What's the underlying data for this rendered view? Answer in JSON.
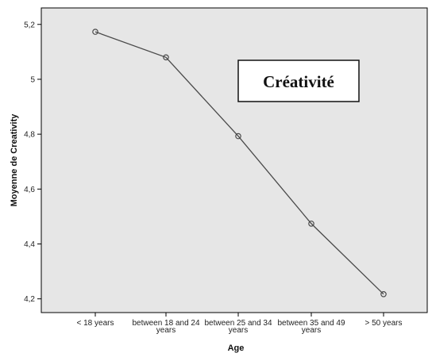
{
  "chart_data": {
    "type": "line",
    "title": "",
    "xlabel": "Age",
    "ylabel": "Moyenne de Creativity",
    "categories": [
      "< 18 years",
      "between 18 and 24 years",
      "between 25 and 34 years",
      "between 35 and 49 years",
      "> 50 years"
    ],
    "category_lines": [
      [
        "< 18 years"
      ],
      [
        "between 18 and 24",
        "years"
      ],
      [
        "between 25 and 34",
        "years"
      ],
      [
        "between 35 and 49",
        "years"
      ],
      [
        "> 50 years"
      ]
    ],
    "values": [
      5.173,
      5.08,
      4.793,
      4.474,
      4.217
    ],
    "ylim": [
      4.15,
      5.26
    ],
    "yticks": [
      4.2,
      4.4,
      4.6,
      4.8,
      5.0,
      5.2
    ],
    "ytick_labels": [
      "4,2",
      "4,4",
      "4,6",
      "4,8",
      "5",
      "5,2"
    ],
    "grid": false,
    "annotation": "Créativité",
    "colors": {
      "plot_background": "#e6e6e6",
      "line": "#4a4a4a",
      "marker": "#4a4a4a"
    }
  }
}
